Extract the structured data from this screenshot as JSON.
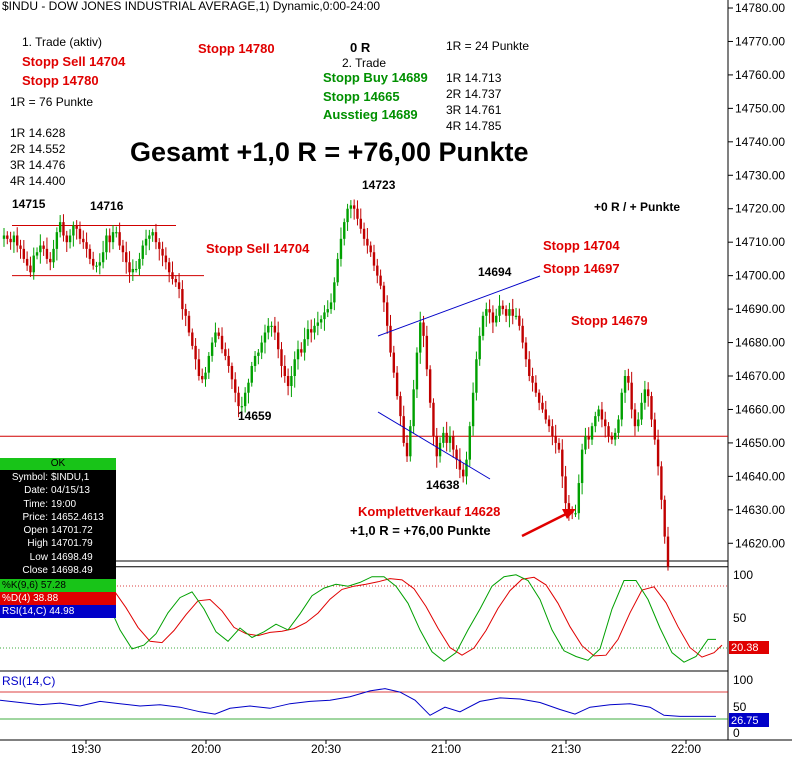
{
  "header": {
    "title": "$INDU - DOW JONES INDUSTRIAL AVERAGE,1) Dynamic,0:00-24:00"
  },
  "annotations": {
    "trade1": "1. Trade (aktiv)",
    "t1_stopp_sell": "Stopp Sell 14704",
    "t1_stopp": "Stopp 14780",
    "t1_r": "1R = 76 Punkte",
    "t1_targets": [
      "1R 14.628",
      "2R 14.552",
      "3R 14.476",
      "4R 14.400"
    ],
    "top_stopp": "Stopp 14780",
    "trade2_r": "0 R",
    "trade2": "2. Trade",
    "t2_buy": "Stopp Buy 14689",
    "t2_stopp": "Stopp 14665",
    "t2_exit": "Ausstieg 14689",
    "t2_r": "1R = 24 Punkte",
    "t2_targets": [
      "1R 14.713",
      "2R 14.737",
      "3R 14.761",
      "4R 14.785"
    ],
    "gesamt": "Gesamt +1,0 R = +76,00 Punkte",
    "zero_r": "+0 R / + Punkte",
    "stopp_sell_mid": "Stopp Sell 14704",
    "stopp_a": "Stopp 14704",
    "stopp_b": "Stopp 14697",
    "stopp_c": "Stopp 14679",
    "komplett": "Komplettverkauf 14628",
    "komplett_r": "+1,0 R = +76,00 Punkte",
    "lbl_14715": "14715",
    "lbl_14716": "14716",
    "lbl_14723": "14723",
    "lbl_14694": "14694",
    "lbl_14659": "14659",
    "lbl_14638": "14638"
  },
  "info_panel": {
    "status": "OK",
    "rows": [
      {
        "k": "Symbol:",
        "v": "$INDU,1"
      },
      {
        "k": "Date:",
        "v": "04/15/13"
      },
      {
        "k": "Time:",
        "v": "19:00"
      },
      {
        "k": "Price:",
        "v": "14652.4613"
      },
      {
        "k": "Open",
        "v": "14701.72"
      },
      {
        "k": "High",
        "v": "14701.79"
      },
      {
        "k": "Low",
        "v": "14698.49"
      },
      {
        "k": "Close",
        "v": "14698.49"
      }
    ],
    "k_label": "%K(9,6) 57.28",
    "d_label": "%D(4) 38.88",
    "rsi_label": "RSI(14,C) 44.98"
  },
  "rsi_panel": {
    "label": "RSI(14,C)",
    "value_label": "26.75"
  },
  "stoch_panel": {
    "value_label": "20.38"
  },
  "colors": {
    "up": "#00a000",
    "down": "#c00000",
    "annotation_red": "#e00000",
    "annotation_green": "#009000",
    "trend": "#0000c8",
    "stoch_k": "#00a000",
    "stoch_d": "#e00000",
    "rsi": "#0000c8",
    "ok": "#18c418"
  },
  "chart_data": {
    "type": "candlestick",
    "symbol": "$INDU",
    "interval": "1 minute",
    "ylim": [
      14612,
      14782
    ],
    "y_ticks": [
      14620,
      14630,
      14640,
      14650,
      14660,
      14670,
      14680,
      14690,
      14700,
      14710,
      14720,
      14730,
      14740,
      14750,
      14760,
      14770,
      14780
    ],
    "x_ticks": [
      "19:30",
      "20:00",
      "20:30",
      "21:00",
      "21:30",
      "22:00"
    ],
    "candle_closes": [
      14712,
      14711,
      14710,
      14712,
      14709,
      14708,
      14705,
      14703,
      14701,
      14706,
      14707,
      14709,
      14708,
      14705,
      14704,
      14708,
      14713,
      14716,
      14712,
      14710,
      14712,
      14715,
      14714,
      14711,
      14710,
      14708,
      14705,
      14703,
      14703,
      14704,
      14707,
      14712,
      14710,
      14713,
      14713,
      14709,
      14707,
      14704,
      14701,
      14702,
      14702,
      14705,
      14709,
      14711,
      14712,
      14713,
      14710,
      14708,
      14706,
      14704,
      14701,
      14699,
      14698,
      14696,
      14690,
      14688,
      14683,
      14679,
      14675,
      14670,
      14669,
      14671,
      14676,
      14680,
      14683,
      14682,
      14678,
      14676,
      14673,
      14669,
      14665,
      14661,
      14661,
      14665,
      14668,
      14673,
      14676,
      14677,
      14680,
      14683,
      14685,
      14685,
      14683,
      14678,
      14673,
      14670,
      14667,
      14670,
      14675,
      14678,
      14677,
      14681,
      14684,
      14683,
      14685,
      14686,
      14687,
      14689,
      14690,
      14692,
      14698,
      14705,
      14711,
      14716,
      14720,
      14721,
      14720,
      14717,
      14714,
      14711,
      14709,
      14707,
      14703,
      14700,
      14697,
      14692,
      14685,
      14677,
      14671,
      14664,
      14658,
      14650,
      14646,
      14655,
      14666,
      14677,
      14686,
      14682,
      14672,
      14662,
      14652,
      14646,
      14650,
      14653,
      14650,
      14652,
      14648,
      14645,
      14642,
      14640,
      14645,
      14655,
      14665,
      14675,
      14682,
      14688,
      14690,
      14689,
      14686,
      14688,
      14691,
      14690,
      14688,
      14690,
      14688,
      14688,
      14685,
      14680,
      14675,
      14670,
      14668,
      14665,
      14662,
      14660,
      14657,
      14655,
      14652,
      14650,
      14648,
      14640,
      14632,
      14630,
      14629,
      14629,
      14638,
      14648,
      14652,
      14651,
      14655,
      14658,
      14660,
      14657,
      14655,
      14652,
      14651,
      14653,
      14657,
      14665,
      14670,
      14668,
      14660,
      14655,
      14657,
      14662,
      14666,
      14664,
      14657,
      14651,
      14643,
      14633,
      14622,
      14613
    ],
    "resistance_level": 14715,
    "horizontal_line": 14652,
    "stochastic": {
      "k_label": "%K(9,6)",
      "d_label": "%D(4)",
      "k_value": 57.28,
      "d_value": 38.88,
      "ylim": [
        0,
        100
      ],
      "levels": [
        80,
        20
      ]
    },
    "rsi": {
      "label": "RSI(14,C)",
      "value": 44.98,
      "last": 26.75,
      "ylim": [
        0,
        100
      ],
      "levels": [
        70,
        30
      ]
    }
  }
}
